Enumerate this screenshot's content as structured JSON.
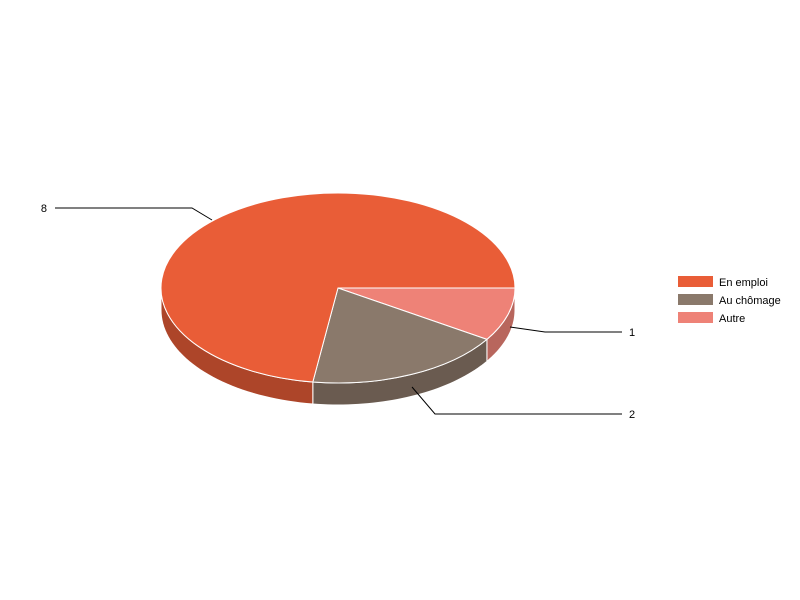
{
  "chart_data": {
    "type": "pie",
    "style": "3d",
    "categories": [
      "En emploi",
      "Au chômage",
      "Autre"
    ],
    "values": [
      8,
      2,
      1
    ],
    "colors": [
      "#E95D37",
      "#8A796B",
      "#EE8277"
    ],
    "side_colors": [
      "#AD4529",
      "#6A5B50",
      "#B8665D"
    ],
    "data_labels": [
      "8",
      "2",
      "1"
    ],
    "legend_position": "right",
    "title": ""
  }
}
